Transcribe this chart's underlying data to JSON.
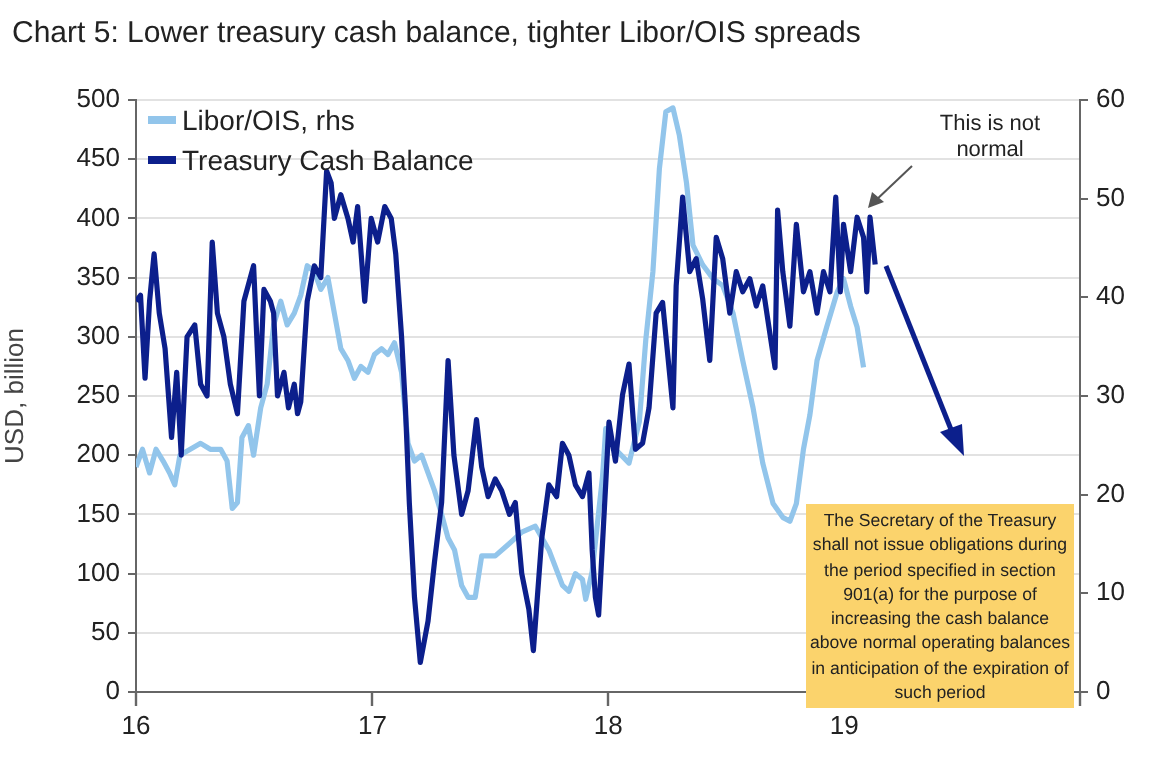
{
  "chart_data": {
    "type": "line",
    "title": "Chart 5: Lower treasury cash balance, tighter Libor/OIS spreads",
    "ylabel": "USD, billion",
    "xlim": [
      "2016-01-01",
      "2020-01-01"
    ],
    "xticks": [
      {
        "value": "2016",
        "label": "16"
      },
      {
        "value": "2017",
        "label": "17"
      },
      {
        "value": "2018",
        "label": "18"
      },
      {
        "value": "2019",
        "label": "19"
      },
      {
        "value": "2020",
        "label": null
      }
    ],
    "ylim": [
      0,
      500
    ],
    "yticks": [
      0,
      50,
      100,
      150,
      200,
      250,
      300,
      350,
      400,
      450,
      500
    ],
    "y2lim": [
      0,
      60
    ],
    "y2ticks": [
      0,
      10,
      20,
      30,
      40,
      50,
      60
    ],
    "grid": "y",
    "legend": "top left",
    "marker": "none",
    "line_style": "solid",
    "annotations": [
      "This is not normal",
      "The Secretary of the Treasury shall not issue obligations during the period specified in section 901(a) for the purpose of increasing the cash balance above normal operating balances in anticipation of the expiration of such period"
    ],
    "series": [
      {
        "name": "Libor/OIS, rhs",
        "color": "#92c5eb",
        "axis": "y2",
        "x": [
          "2016-01-01",
          "2016-01-11",
          "2016-01-22",
          "2016-02-01",
          "2016-02-12",
          "2016-02-22",
          "2016-03-01",
          "2016-03-09",
          "2016-03-25",
          "2016-04-10",
          "2016-04-25",
          "2016-05-11",
          "2016-05-21",
          "2016-05-29",
          "2016-06-06",
          "2016-06-13",
          "2016-06-23",
          "2016-07-01",
          "2016-07-12",
          "2016-07-22",
          "2016-08-01",
          "2016-08-12",
          "2016-08-22",
          "2016-09-02",
          "2016-09-12",
          "2016-09-22",
          "2016-10-03",
          "2016-10-13",
          "2016-10-24",
          "2016-11-03",
          "2016-11-13",
          "2016-11-24",
          "2016-12-04",
          "2016-12-14",
          "2016-12-25",
          "2017-01-04",
          "2017-01-15",
          "2017-01-25",
          "2017-02-04",
          "2017-02-15",
          "2017-02-25",
          "2017-03-07",
          "2017-03-18",
          "2017-03-28",
          "2017-04-07",
          "2017-04-18",
          "2017-04-28",
          "2017-05-08",
          "2017-05-19",
          "2017-05-29",
          "2017-06-09",
          "2017-06-19",
          "2017-07-10",
          "2017-07-31",
          "2017-08-20",
          "2017-09-10",
          "2017-10-01",
          "2017-10-22",
          "2017-11-01",
          "2017-11-11",
          "2017-11-22",
          "2017-11-27",
          "2017-12-07",
          "2017-12-23",
          "2017-12-28",
          "2018-01-12",
          "2018-02-02",
          "2018-02-18",
          "2018-02-28",
          "2018-03-11",
          "2018-03-21",
          "2018-03-31",
          "2018-04-11",
          "2018-04-21",
          "2018-05-02",
          "2018-05-12",
          "2018-05-27",
          "2018-06-12",
          "2018-06-27",
          "2018-07-13",
          "2018-07-28",
          "2018-08-13",
          "2018-08-28",
          "2018-09-13",
          "2018-09-28",
          "2018-10-09",
          "2018-10-19",
          "2018-10-30",
          "2018-11-09",
          "2018-11-20",
          "2018-12-05",
          "2018-12-21",
          "2018-12-31",
          "2019-01-11",
          "2019-01-21",
          "2019-01-31"
        ],
        "values": [
          22.8,
          24.6,
          22.2,
          24.6,
          23.4,
          22.2,
          21,
          24,
          24.6,
          25.2,
          24.6,
          24.6,
          23.4,
          18.6,
          19.2,
          25.8,
          27,
          24,
          28.8,
          31.2,
          37.2,
          39.6,
          37.2,
          38.4,
          40.2,
          43.2,
          42.6,
          40.8,
          42,
          38.4,
          34.8,
          33.6,
          31.8,
          33,
          32.4,
          34.2,
          34.8,
          34.2,
          35.4,
          32.4,
          25.2,
          23.4,
          24,
          22.2,
          20.4,
          18,
          15.6,
          14.4,
          10.8,
          9.6,
          9.6,
          13.8,
          13.8,
          15,
          16.2,
          16.8,
          14.4,
          10.8,
          10.2,
          12,
          11.4,
          9.4,
          12.2,
          21.8,
          26.7,
          24.6,
          23.2,
          27.4,
          35.7,
          42.6,
          53,
          58.8,
          59.2,
          56.4,
          51.6,
          45.3,
          43.3,
          41.9,
          41.2,
          38.4,
          33.6,
          28.8,
          23.2,
          19.1,
          17.7,
          17.3,
          19.1,
          24.6,
          28.1,
          33.6,
          37,
          40.5,
          41.9,
          39.1,
          37,
          32.9
        ]
      },
      {
        "name": "Treasury Cash Balance",
        "color": "#0c1f8c",
        "x": [
          "2016-01-01",
          "2016-01-08",
          "2016-01-15",
          "2016-01-22",
          "2016-01-29",
          "2016-02-06",
          "2016-02-15",
          "2016-02-25",
          "2016-03-04",
          "2016-03-11",
          "2016-03-20",
          "2016-04-01",
          "2016-04-10",
          "2016-04-20",
          "2016-04-28",
          "2016-05-06",
          "2016-05-16",
          "2016-05-26",
          "2016-06-06",
          "2016-06-16",
          "2016-07-01",
          "2016-07-10",
          "2016-07-17",
          "2016-07-27",
          "2016-08-01",
          "2016-08-07",
          "2016-08-17",
          "2016-08-24",
          "2016-09-02",
          "2016-09-07",
          "2016-09-12",
          "2016-09-22",
          "2016-10-03",
          "2016-10-13",
          "2016-10-22",
          "2016-10-29",
          "2016-11-03",
          "2016-11-13",
          "2016-11-24",
          "2016-12-02",
          "2016-12-09",
          "2016-12-20",
          "2016-12-30",
          "2017-01-09",
          "2017-01-20",
          "2017-01-30",
          "2017-02-06",
          "2017-02-15",
          "2017-02-21",
          "2017-02-27",
          "2017-03-07",
          "2017-03-16",
          "2017-03-28",
          "2017-04-07",
          "2017-04-18",
          "2017-04-28",
          "2017-05-07",
          "2017-05-19",
          "2017-05-29",
          "2017-06-11",
          "2017-06-19",
          "2017-06-29",
          "2017-07-10",
          "2017-07-20",
          "2017-08-01",
          "2017-08-10",
          "2017-08-20",
          "2017-08-31",
          "2017-09-07",
          "2017-09-20",
          "2017-10-01",
          "2017-10-13",
          "2017-10-22",
          "2017-11-01",
          "2017-11-11",
          "2017-11-22",
          "2017-12-02",
          "2017-12-07",
          "2017-12-12",
          "2017-12-17",
          "2017-12-28",
          "2018-01-02",
          "2018-01-12",
          "2018-01-23",
          "2018-02-02",
          "2018-02-12",
          "2018-02-23",
          "2018-03-05",
          "2018-03-16",
          "2018-03-26",
          "2018-04-11",
          "2018-04-16",
          "2018-04-26",
          "2018-05-07",
          "2018-05-17",
          "2018-05-27",
          "2018-06-07",
          "2018-06-17",
          "2018-06-27",
          "2018-07-08",
          "2018-07-18",
          "2018-07-28",
          "2018-08-08",
          "2018-08-18",
          "2018-08-28",
          "2018-09-16",
          "2018-09-20",
          "2018-09-28",
          "2018-10-09",
          "2018-10-19",
          "2018-10-30",
          "2018-11-09",
          "2018-11-20",
          "2018-11-30",
          "2018-12-10",
          "2018-12-19",
          "2018-12-26",
          "2018-12-31",
          "2019-01-11",
          "2019-01-21",
          "2019-01-31",
          "2019-02-05",
          "2019-02-10",
          "2019-02-18"
        ],
        "values": [
          330,
          335,
          265,
          330,
          370,
          320,
          290,
          215,
          270,
          200,
          300,
          310,
          260,
          250,
          380,
          320,
          300,
          260,
          235,
          330,
          360,
          250,
          340,
          330,
          320,
          250,
          270,
          240,
          260,
          235,
          245,
          330,
          360,
          350,
          440,
          430,
          400,
          420,
          400,
          380,
          410,
          330,
          400,
          380,
          410,
          400,
          370,
          300,
          240,
          160,
          80,
          25,
          60,
          110,
          160,
          280,
          200,
          150,
          170,
          230,
          190,
          165,
          180,
          170,
          150,
          160,
          100,
          70,
          35,
          130,
          175,
          165,
          210,
          200,
          175,
          165,
          185,
          120,
          80,
          65,
          176,
          228,
          195,
          251,
          277,
          205,
          210,
          240,
          320,
          329,
          240,
          343,
          418,
          355,
          366,
          332,
          280,
          384,
          366,
          320,
          355,
          338,
          349,
          326,
          343,
          274,
          407,
          355,
          309,
          395,
          338,
          355,
          320,
          355,
          338,
          418,
          338,
          395,
          355,
          401,
          384,
          338,
          401,
          361
        ]
      }
    ]
  }
}
